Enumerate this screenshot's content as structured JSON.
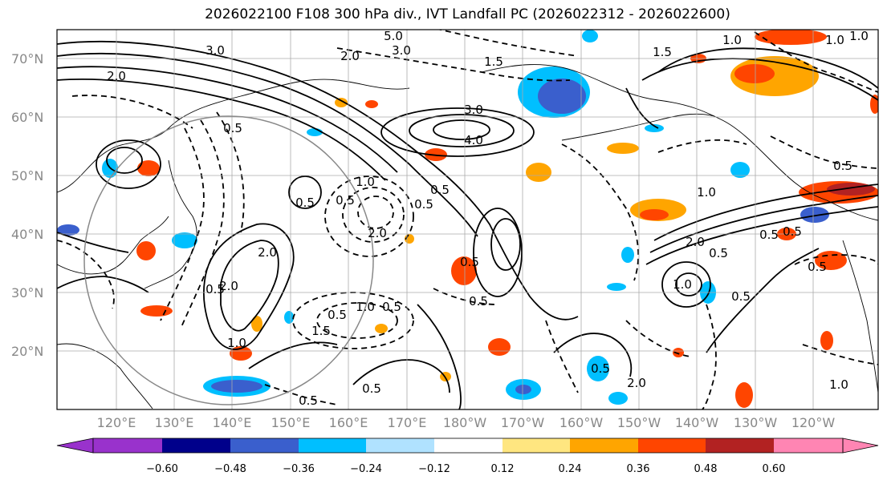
{
  "title": "2026022100 F108 300 hPa div., IVT Landfall PC (2026022312 - 2026022600)",
  "lat_labels": [
    "70°N",
    "60°N",
    "50°N",
    "40°N",
    "30°N",
    "20°N"
  ],
  "lon_labels": [
    "120°E",
    "130°E",
    "140°E",
    "150°E",
    "160°E",
    "170°E",
    "180°W",
    "170°W",
    "160°W",
    "150°W",
    "140°W",
    "130°W",
    "120°W"
  ],
  "colorbar": {
    "colors": [
      "#9932cc",
      "#00008b",
      "#3a5fcd",
      "#00bfff",
      "#b0e2ff",
      "#ffffff",
      "#ffe680",
      "#ffa500",
      "#ff4500",
      "#b22222",
      "#ff85b3"
    ],
    "tick_labels": [
      "−0.60",
      "−0.48",
      "−0.36",
      "−0.24",
      "−0.12",
      "0.12",
      "0.24",
      "0.36",
      "0.48",
      "0.60"
    ]
  },
  "contour_labels": [
    "5.0",
    "3.0",
    "3.0",
    "2.0",
    "3.0",
    "4.0",
    "1.5",
    "1.0",
    "2.0",
    "1.5",
    "1.0",
    "0.5",
    "0.5",
    "1.0",
    "2.0",
    "0.5",
    "0.5",
    "0.5",
    "2.0",
    "0.5",
    "0.5",
    "1.0",
    "0.5",
    "1.5",
    "2.0",
    "0.5",
    "0.5",
    "1.0",
    "0.5",
    "0.5",
    "0.5",
    "2.0",
    "1.0",
    "0.5",
    "0.5",
    "0.5",
    "1.0",
    "0.5",
    "1.0",
    "0.5",
    "2.0",
    "0.5",
    "1.0"
  ]
}
